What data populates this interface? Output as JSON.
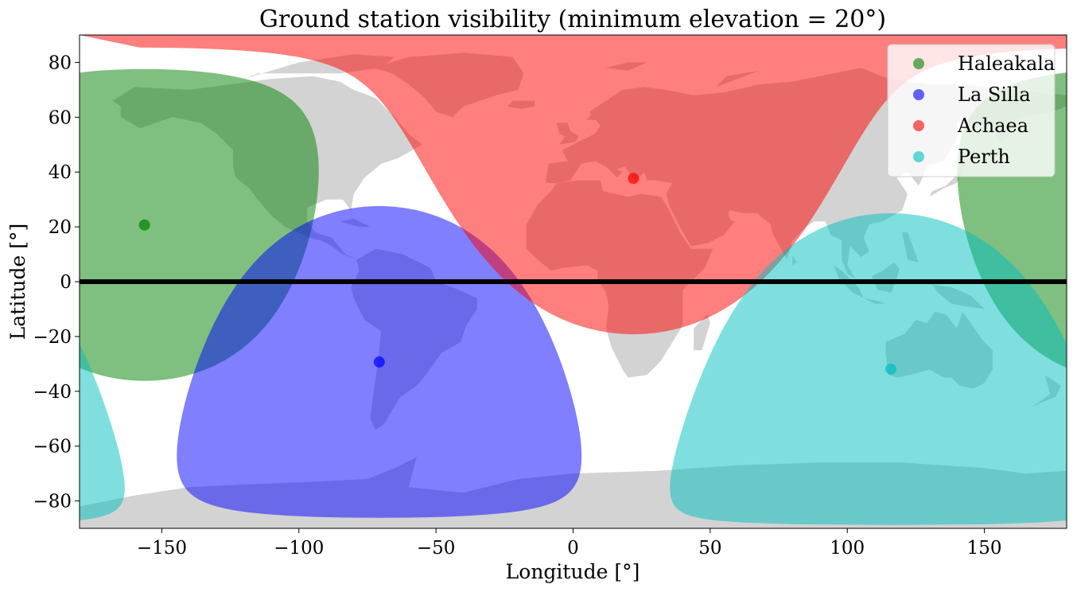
{
  "chart_data": {
    "type": "map",
    "title": "Ground station visibility (minimum elevation = 20°)",
    "xlabel": "Longitude [°]",
    "ylabel": "Latitude [°]",
    "xlim": [
      -180,
      180
    ],
    "ylim": [
      -90,
      90
    ],
    "xticks": [
      -150,
      -100,
      -50,
      0,
      50,
      100,
      150
    ],
    "yticks": [
      -80,
      -60,
      -40,
      -20,
      0,
      20,
      40,
      60,
      80
    ],
    "xtick_labels": [
      "−150",
      "−100",
      "−50",
      "0",
      "50",
      "100",
      "150"
    ],
    "ytick_labels": [
      "−80",
      "−60",
      "−40",
      "−20",
      "0",
      "20",
      "40",
      "60",
      "80"
    ],
    "legend_position": "top-right",
    "ground_track": {
      "latitude": 0,
      "color": "#000000"
    },
    "stations": [
      {
        "name": "Haleakala",
        "lon": -156.3,
        "lat": 20.7,
        "color": "#008000"
      },
      {
        "name": "La Silla",
        "lon": -70.7,
        "lat": -29.3,
        "color": "#0000ff"
      },
      {
        "name": "Achaea",
        "lon": 22.0,
        "lat": 37.7,
        "color": "#ff0000"
      },
      {
        "name": "Perth",
        "lon": 115.9,
        "lat": -31.9,
        "color": "#00bfbf"
      }
    ]
  }
}
